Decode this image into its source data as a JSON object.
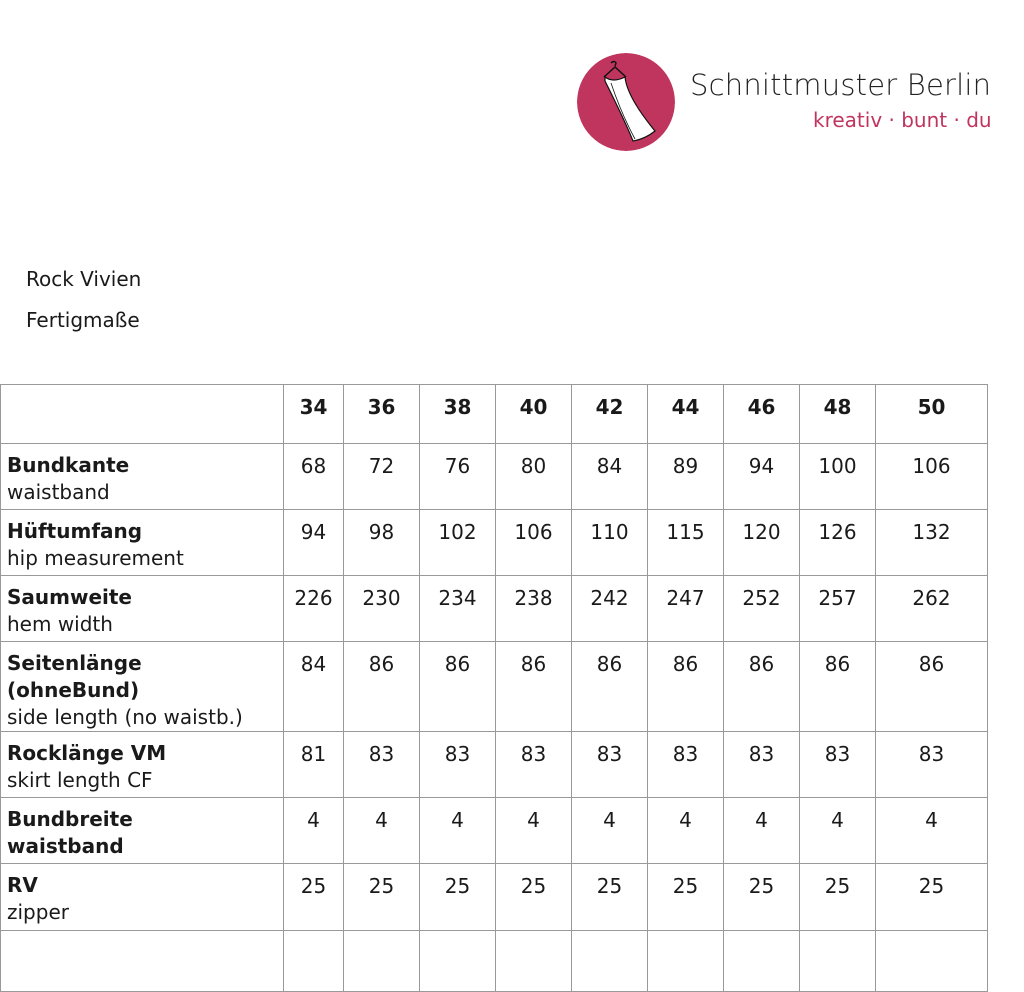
{
  "brand": {
    "name": "Schnittmuster Berlin",
    "tagline": "kreativ · bunt · du",
    "color": "#c0355e",
    "logo_icon": "dress-on-hanger-icon"
  },
  "document": {
    "title": "Rock Vivien",
    "subtitle": "Fertigmaße"
  },
  "table": {
    "sizes": [
      "34",
      "36",
      "38",
      "40",
      "42",
      "44",
      "46",
      "48",
      "50"
    ],
    "rows": [
      {
        "label": "Bundkante",
        "sub": "waistband",
        "values": [
          "68",
          "72",
          "76",
          "80",
          "84",
          "89",
          "94",
          "100",
          "106"
        ]
      },
      {
        "label": "Hüftumfang",
        "sub": "hip measurement",
        "values": [
          "94",
          "98",
          "102",
          "106",
          "110",
          "115",
          "120",
          "126",
          "132"
        ]
      },
      {
        "label": "Saumweite",
        "sub": "hem width",
        "values": [
          "226",
          "230",
          "234",
          "238",
          "242",
          "247",
          "252",
          "257",
          "262"
        ]
      },
      {
        "label": "Seitenlänge (ohneBund)",
        "sub": "side length (no waistb.)",
        "values": [
          "84",
          "86",
          "86",
          "86",
          "86",
          "86",
          "86",
          "86",
          "86"
        ]
      },
      {
        "label": "Rocklänge VM",
        "sub": "skirt length CF",
        "values": [
          "81",
          "83",
          "83",
          "83",
          "83",
          "83",
          "83",
          "83",
          "83"
        ]
      },
      {
        "label": "Bundbreite",
        "sub": "waistband",
        "sub_bold": true,
        "values": [
          "4",
          "4",
          "4",
          "4",
          "4",
          "4",
          "4",
          "4",
          "4"
        ]
      },
      {
        "label": "RV",
        "sub": "zipper",
        "values": [
          "25",
          "25",
          "25",
          "25",
          "25",
          "25",
          "25",
          "25",
          "25"
        ]
      }
    ]
  }
}
